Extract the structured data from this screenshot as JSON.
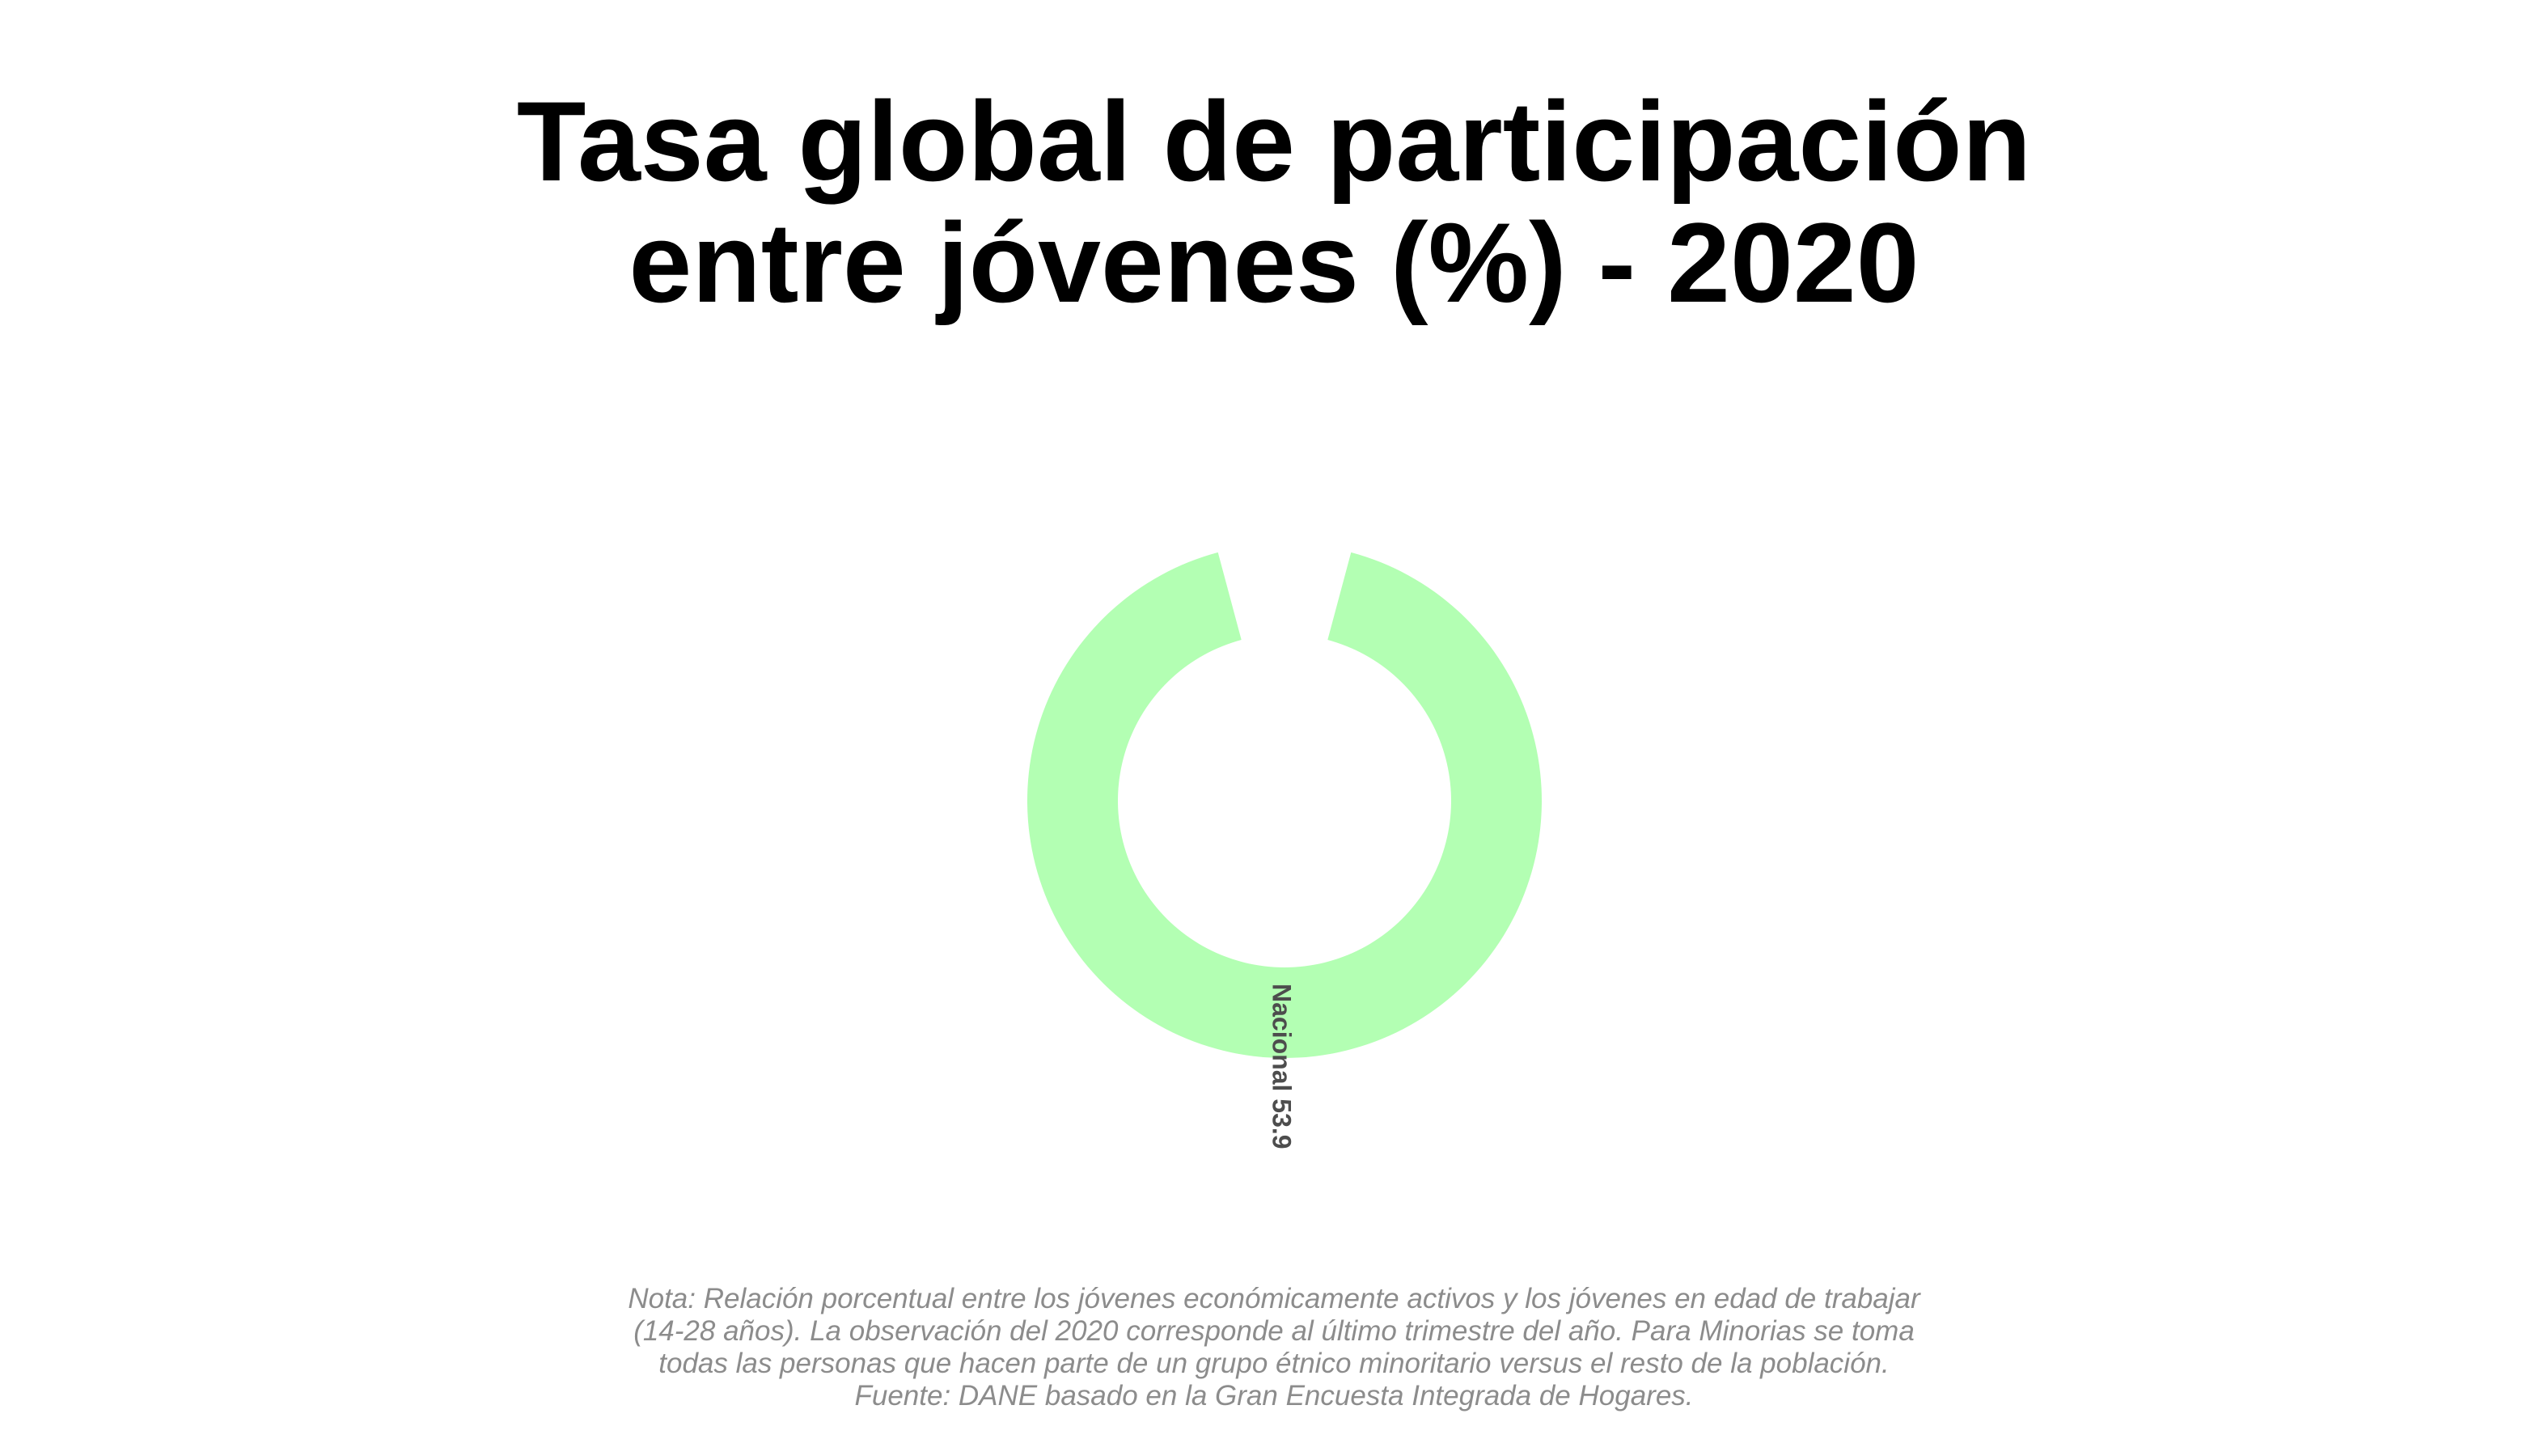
{
  "title_lines": [
    "Tasa global de participación",
    "entre jóvenes (%) - 2020"
  ],
  "chart_data": {
    "type": "pie",
    "categories": [
      "Nacional"
    ],
    "values": [
      53.9
    ],
    "labels": [
      "Nacional 53.9"
    ],
    "colors": [
      "#b3ffb3"
    ],
    "label_color": "#4d4d4d"
  },
  "footnote_lines": [
    "Nota: Relación porcentual entre los jóvenes económicamente activos y los jóvenes en edad de trabajar",
    "(14-28 años). La observación del 2020 corresponde al último trimestre del año. Para Minorias se toma",
    "todas las personas que hacen parte de un grupo étnico minoritario versus el resto de la población.",
    "Fuente: DANE basado en la Gran Encuesta Integrada de Hogares."
  ]
}
